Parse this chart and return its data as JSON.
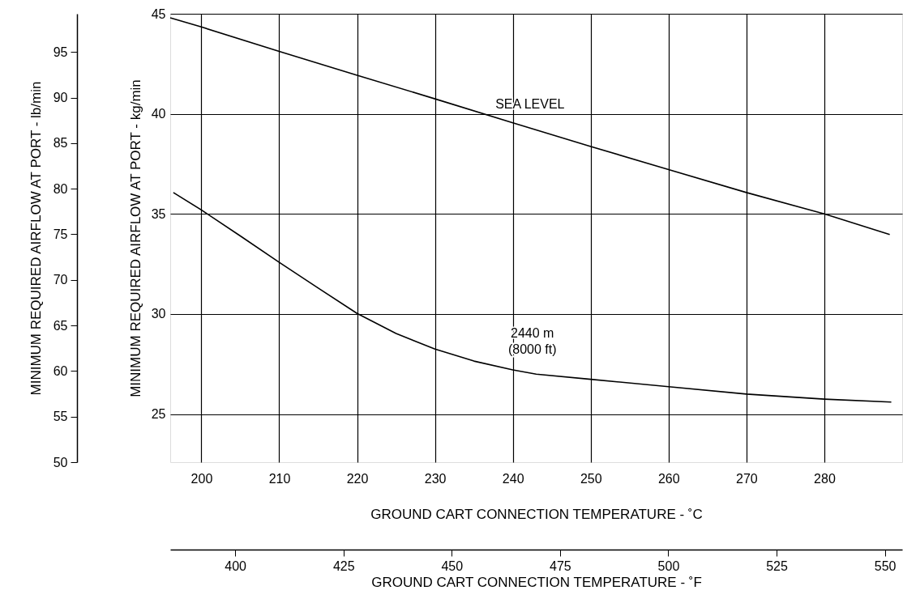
{
  "chart_data": {
    "type": "line",
    "xlabel": "GROUND CART CONNECTION TEMPERATURE - ˚C",
    "ylabel": "MINIMUM REQUIRED AIRFLOW AT PORT - kg/min",
    "y2label": "MINIMUM REQUIRED AIRFLOW AT PORT - lb/min",
    "x2label": "GROUND CART CONNECTION TEMPERATURE - ˚F",
    "xlim": [
      196,
      290
    ],
    "xticks": [
      200,
      210,
      220,
      230,
      240,
      250,
      260,
      270,
      280
    ],
    "ylim": [
      22.6,
      45
    ],
    "yticks": [
      25,
      30,
      35,
      40,
      45
    ],
    "y2lim": [
      50,
      99.2
    ],
    "y2ticks": [
      50,
      55,
      60,
      65,
      70,
      75,
      80,
      85,
      90,
      95
    ],
    "x2lim": [
      385,
      554
    ],
    "x2ticks": [
      400,
      425,
      450,
      475,
      500,
      525,
      550
    ],
    "grid": true,
    "marker": "none",
    "line_style": "solid",
    "series": [
      {
        "name": "SEA LEVEL",
        "color": "#000000",
        "x": [
          196,
          200,
          210,
          220,
          230,
          240,
          250,
          260,
          270,
          280,
          288.4
        ],
        "values": [
          44.8,
          44.34,
          43.12,
          41.93,
          40.75,
          39.55,
          38.37,
          37.22,
          36.07,
          35.0,
          33.97
        ]
      },
      {
        "name": "2440 m\n(8000 ft)",
        "color": "#000000",
        "x": [
          196.4,
          200,
          205,
          210,
          215,
          220,
          225,
          230,
          235,
          240,
          243,
          250,
          260,
          270,
          280,
          288.6
        ],
        "values": [
          36.07,
          35.2,
          33.9,
          32.58,
          31.3,
          30.03,
          29.03,
          28.25,
          27.65,
          27.21,
          27.0,
          26.74,
          26.37,
          26.0,
          25.75,
          25.6
        ]
      }
    ]
  }
}
